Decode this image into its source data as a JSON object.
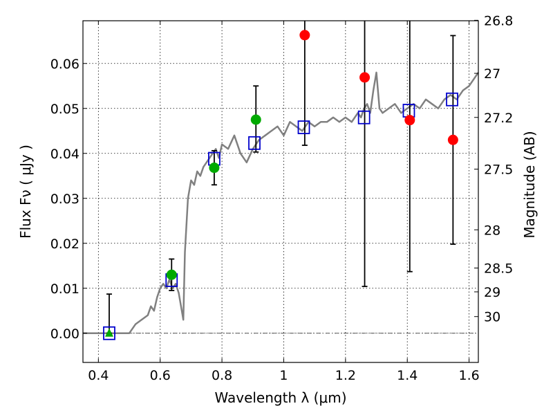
{
  "chart_data": {
    "type": "scatter",
    "title": "",
    "xlabel": "Wavelength  λ (μm)",
    "ylabel": "Flux  Fν ( μJy )",
    "y2label": "Magnitude (AB)",
    "xlim": [
      0.35,
      1.63
    ],
    "ylim": [
      -0.0065,
      0.0695
    ],
    "grid": true,
    "legend": "none",
    "x_ticks": [
      {
        "value": 0.4,
        "label": "0.4"
      },
      {
        "value": 0.6,
        "label": "0.6"
      },
      {
        "value": 0.8,
        "label": "0.8"
      },
      {
        "value": 1.0,
        "label": "1"
      },
      {
        "value": 1.2,
        "label": "1.2"
      },
      {
        "value": 1.4,
        "label": "1.4"
      },
      {
        "value": 1.6,
        "label": "1.6"
      }
    ],
    "y_ticks": [
      {
        "value": 0.0,
        "label": "0.00"
      },
      {
        "value": 0.01,
        "label": "0.01"
      },
      {
        "value": 0.02,
        "label": "0.02"
      },
      {
        "value": 0.03,
        "label": "0.03"
      },
      {
        "value": 0.04,
        "label": "0.04"
      },
      {
        "value": 0.05,
        "label": "0.05"
      },
      {
        "value": 0.06,
        "label": "0.06"
      }
    ],
    "y2_ticks": [
      {
        "flux": 0.0696,
        "label": "26.8"
      },
      {
        "flux": 0.0578,
        "label": "27"
      },
      {
        "flux": 0.048,
        "label": "27.2"
      },
      {
        "flux": 0.0365,
        "label": "27.5"
      },
      {
        "flux": 0.023,
        "label": "28"
      },
      {
        "flux": 0.0145,
        "label": "28.5"
      },
      {
        "flux": 0.0092,
        "label": "29"
      },
      {
        "flux": 0.0037,
        "label": "30"
      }
    ],
    "colors": {
      "model": "#808080",
      "model_points": "#0000cc",
      "detections": "#00aa00",
      "non_detections": "#ff0000",
      "errorbars": "#000000",
      "zero_line": "#555555"
    },
    "model_spectrum": {
      "x": [
        0.35,
        0.4,
        0.5,
        0.52,
        0.54,
        0.56,
        0.57,
        0.58,
        0.59,
        0.6,
        0.61,
        0.62,
        0.63,
        0.64,
        0.65,
        0.66,
        0.67,
        0.675,
        0.68,
        0.69,
        0.7,
        0.71,
        0.72,
        0.73,
        0.74,
        0.75,
        0.76,
        0.77,
        0.78,
        0.79,
        0.8,
        0.82,
        0.84,
        0.86,
        0.88,
        0.9,
        0.92,
        0.94,
        0.96,
        0.98,
        1.0,
        1.02,
        1.04,
        1.06,
        1.08,
        1.1,
        1.12,
        1.14,
        1.16,
        1.18,
        1.2,
        1.22,
        1.24,
        1.25,
        1.26,
        1.27,
        1.28,
        1.29,
        1.3,
        1.31,
        1.32,
        1.34,
        1.36,
        1.38,
        1.4,
        1.42,
        1.44,
        1.46,
        1.48,
        1.5,
        1.52,
        1.54,
        1.56,
        1.58,
        1.6,
        1.63
      ],
      "y": [
        0.0,
        0.0,
        0.0,
        0.002,
        0.003,
        0.004,
        0.006,
        0.005,
        0.008,
        0.01,
        0.011,
        0.01,
        0.012,
        0.01,
        0.011,
        0.009,
        0.005,
        0.003,
        0.018,
        0.03,
        0.034,
        0.033,
        0.036,
        0.035,
        0.037,
        0.038,
        0.039,
        0.04,
        0.041,
        0.039,
        0.042,
        0.041,
        0.044,
        0.04,
        0.038,
        0.041,
        0.043,
        0.044,
        0.045,
        0.046,
        0.044,
        0.047,
        0.046,
        0.045,
        0.047,
        0.046,
        0.047,
        0.047,
        0.048,
        0.047,
        0.048,
        0.047,
        0.049,
        0.048,
        0.05,
        0.051,
        0.049,
        0.054,
        0.058,
        0.05,
        0.049,
        0.05,
        0.051,
        0.049,
        0.05,
        0.051,
        0.05,
        0.052,
        0.051,
        0.05,
        0.052,
        0.053,
        0.052,
        0.054,
        0.055,
        0.058
      ]
    },
    "model_points": [
      {
        "x": 0.435,
        "y": 0.0
      },
      {
        "x": 0.637,
        "y": 0.0118
      },
      {
        "x": 0.775,
        "y": 0.0388
      },
      {
        "x": 0.905,
        "y": 0.0423
      },
      {
        "x": 1.065,
        "y": 0.0458
      },
      {
        "x": 1.26,
        "y": 0.048
      },
      {
        "x": 1.405,
        "y": 0.0495
      },
      {
        "x": 1.545,
        "y": 0.052
      }
    ],
    "observed_points": [
      {
        "x": 0.435,
        "y": 0.0,
        "yerr_low": 0.0,
        "yerr_high": 0.0087,
        "marker": "triangle",
        "status": "detection"
      },
      {
        "x": 0.637,
        "y": 0.013,
        "yerr_low": 0.0035,
        "yerr_high": 0.0035,
        "marker": "circle",
        "status": "detection"
      },
      {
        "x": 0.775,
        "y": 0.0368,
        "yerr_low": 0.0038,
        "yerr_high": 0.0038,
        "marker": "circle",
        "status": "detection"
      },
      {
        "x": 0.91,
        "y": 0.0475,
        "yerr_low": 0.0072,
        "yerr_high": 0.0075,
        "marker": "circle",
        "status": "detection"
      },
      {
        "x": 1.068,
        "y": 0.0663,
        "yerr_low": 0.0245,
        "yerr_high": 0.005,
        "marker": "circle",
        "status": "non-detection"
      },
      {
        "x": 1.262,
        "y": 0.0569,
        "yerr_low": 0.0465,
        "yerr_high": 0.015,
        "marker": "circle",
        "status": "non-detection"
      },
      {
        "x": 1.408,
        "y": 0.0474,
        "yerr_low": 0.0337,
        "yerr_high": 0.025,
        "marker": "circle",
        "status": "non-detection"
      },
      {
        "x": 1.548,
        "y": 0.043,
        "yerr_low": 0.0232,
        "yerr_high": 0.0232,
        "marker": "circle",
        "status": "non-detection"
      }
    ]
  }
}
